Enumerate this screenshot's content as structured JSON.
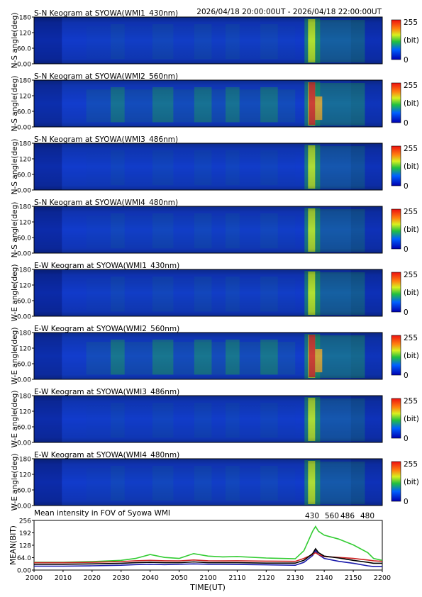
{
  "header": {
    "time_range": "2026/04/18 20:00:00UT - 2026/04/18 22:00:00UT"
  },
  "colors": {
    "keogram_dark": "#071a8c",
    "keogram_base": "#1036c8",
    "keogram_mid": "#1fae4a",
    "keogram_hot": "#e23020",
    "series_430": "#1a1aaa",
    "series_560": "#33cc33",
    "series_486": "#cc2222",
    "series_480": "#000000"
  },
  "colorbar": {
    "max_label": "255",
    "unit_label": "(bit)",
    "min_label": "0"
  },
  "keograms": [
    {
      "title": "S-N Keogram at SYOWA(WMI1_430nm)",
      "ylabel": "N-S angle(deg)",
      "yticks": [
        "180",
        "120",
        "60.0",
        "0.00"
      ],
      "brightness": 0.15,
      "activity": 0.1,
      "onset_peak": 0.75
    },
    {
      "title": "S-N Keogram at SYOWA(WMI2_560nm)",
      "ylabel": "N-S angle(deg)",
      "yticks": [
        "180",
        "120",
        "60.0",
        "0.00"
      ],
      "brightness": 0.3,
      "activity": 0.45,
      "onset_peak": 1.0
    },
    {
      "title": "S-N Keogram at SYOWA(WMI3_486nm)",
      "ylabel": "N-S angle(deg)",
      "yticks": [
        "180",
        "120",
        "60.0",
        "0.00"
      ],
      "brightness": 0.22,
      "activity": 0.08,
      "onset_peak": 0.55
    },
    {
      "title": "S-N Keogram at SYOWA(WMI4_480nm)",
      "ylabel": "N-S angle(deg)",
      "yticks": [
        "180",
        "120",
        "60.0",
        "0.00"
      ],
      "brightness": 0.2,
      "activity": 0.1,
      "onset_peak": 0.62
    },
    {
      "title": "E-W Keogram at SYOWA(WMI1_430nm)",
      "ylabel": "W-E angle(deg)",
      "yticks": [
        "180",
        "120",
        "60.0",
        "0.00"
      ],
      "brightness": 0.15,
      "activity": 0.1,
      "onset_peak": 0.75
    },
    {
      "title": "E-W Keogram at SYOWA(WMI2_560nm)",
      "ylabel": "W-E angle(deg)",
      "yticks": [
        "180",
        "120",
        "60.0",
        "0.00"
      ],
      "brightness": 0.3,
      "activity": 0.5,
      "onset_peak": 1.0
    },
    {
      "title": "E-W Keogram at SYOWA(WMI3_486nm)",
      "ylabel": "W-E angle(deg)",
      "yticks": [
        "180",
        "120",
        "60.0",
        "0.00"
      ],
      "brightness": 0.22,
      "activity": 0.08,
      "onset_peak": 0.55
    },
    {
      "title": "E-W Keogram at SYOWA(WMI4_480nm)",
      "ylabel": "W-E angle(deg)",
      "yticks": [
        "180",
        "120",
        "60.0",
        "0.00"
      ],
      "brightness": 0.2,
      "activity": 0.1,
      "onset_peak": 0.62
    }
  ],
  "chart_data": {
    "type": "line",
    "title": "Mean intensity in FOV of Syowa WMI",
    "xlabel": "TIME(UT)",
    "ylabel": "MEAN(BIT)",
    "xlim": [
      0,
      120
    ],
    "ylim": [
      0,
      256
    ],
    "xticks": [
      0,
      10,
      20,
      30,
      40,
      50,
      60,
      70,
      80,
      90,
      100,
      110,
      120
    ],
    "xtick_labels": [
      "2000",
      "2010",
      "2020",
      "2030",
      "2040",
      "2050",
      "2100",
      "2110",
      "2120",
      "2130",
      "2140",
      "2150",
      "2200"
    ],
    "yticks": [
      0,
      64,
      128,
      192,
      256
    ],
    "ytick_labels": [
      "0.00",
      "64.0",
      "128",
      "192",
      "256"
    ],
    "grid": false,
    "legend": "top-right",
    "x": [
      0,
      10,
      20,
      30,
      35,
      40,
      45,
      50,
      55,
      60,
      65,
      70,
      80,
      90,
      93,
      96,
      97,
      98,
      100,
      105,
      110,
      115,
      117,
      120
    ],
    "series": [
      {
        "name": "430",
        "values": [
          20,
          20,
          22,
          25,
          28,
          30,
          28,
          30,
          32,
          30,
          30,
          29,
          27,
          25,
          40,
          75,
          100,
          80,
          60,
          45,
          35,
          22,
          18,
          18
        ]
      },
      {
        "name": "560",
        "values": [
          40,
          40,
          44,
          50,
          60,
          80,
          65,
          60,
          85,
          72,
          68,
          70,
          62,
          58,
          100,
          200,
          225,
          200,
          180,
          160,
          130,
          90,
          60,
          50
        ]
      },
      {
        "name": "486",
        "values": [
          38,
          38,
          40,
          44,
          48,
          50,
          48,
          47,
          52,
          48,
          47,
          48,
          46,
          45,
          60,
          80,
          90,
          80,
          70,
          65,
          60,
          52,
          48,
          45
        ]
      },
      {
        "name": "480",
        "values": [
          30,
          30,
          32,
          35,
          38,
          40,
          38,
          38,
          42,
          38,
          38,
          38,
          36,
          36,
          50,
          85,
          110,
          90,
          72,
          62,
          50,
          40,
          35,
          35
        ]
      }
    ]
  }
}
